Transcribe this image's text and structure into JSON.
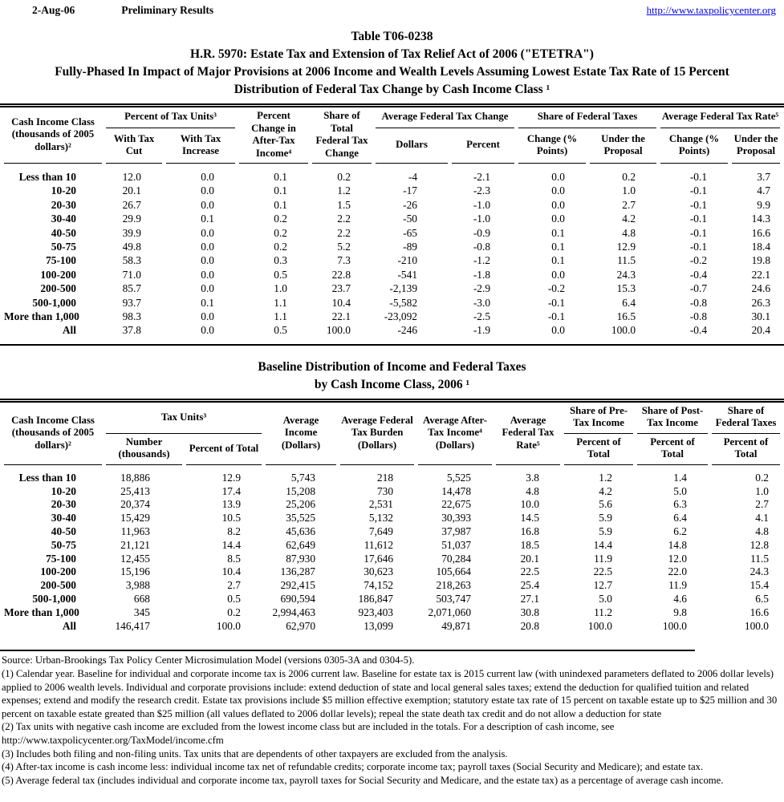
{
  "page_header": {
    "date": "2-Aug-06",
    "status": "Preliminary Results",
    "link": "http://www.taxpolicycenter.org"
  },
  "title_block": {
    "line1": "Table T06-0238",
    "line2": "H.R. 5970: Estate Tax and Extension of Tax Relief Act of 2006 (\"ETETRA\")",
    "line3": "Fully-Phased In Impact of Major Provisions at 2006 Income and Wealth Levels Assuming Lowest Estate Tax Rate of 15 Percent",
    "line4": "Distribution of Federal Tax Change by Cash Income Class ¹"
  },
  "table1": {
    "header": {
      "cash_income_class": "Cash Income Class (thousands of 2005 dollars)²",
      "pct_tax_units": "Percent of Tax Units³",
      "with_tax_cut": "With Tax Cut",
      "with_tax_increase": "With Tax Increase",
      "pct_change_ati": "Percent Change in After-Tax Income⁴",
      "share_total_change": "Share of Total Federal Tax Change",
      "avg_fed_tax_change": "Average Federal Tax Change",
      "dollars": "Dollars",
      "percent": "Percent",
      "share_fed_taxes": "Share of Federal Taxes",
      "change_pts_1": "Change (% Points)",
      "under_proposal_1": "Under the Proposal",
      "avg_fed_tax_rate": "Average Federal Tax Rate⁵",
      "change_pts_2": "Change (% Points)",
      "under_proposal_2": "Under the Proposal"
    },
    "rows": [
      [
        "Less than 10",
        "12.0",
        "0.0",
        "0.1",
        "0.2",
        "-4",
        "-2.1",
        "0.0",
        "0.2",
        "-0.1",
        "3.7"
      ],
      [
        "10-20",
        "20.1",
        "0.0",
        "0.1",
        "1.2",
        "-17",
        "-2.3",
        "0.0",
        "1.0",
        "-0.1",
        "4.7"
      ],
      [
        "20-30",
        "26.7",
        "0.0",
        "0.1",
        "1.5",
        "-26",
        "-1.0",
        "0.0",
        "2.7",
        "-0.1",
        "9.9"
      ],
      [
        "30-40",
        "29.9",
        "0.1",
        "0.2",
        "2.2",
        "-50",
        "-1.0",
        "0.0",
        "4.2",
        "-0.1",
        "14.3"
      ],
      [
        "40-50",
        "39.9",
        "0.0",
        "0.2",
        "2.2",
        "-65",
        "-0.9",
        "0.1",
        "4.8",
        "-0.1",
        "16.6"
      ],
      [
        "50-75",
        "49.8",
        "0.0",
        "0.2",
        "5.2",
        "-89",
        "-0.8",
        "0.1",
        "12.9",
        "-0.1",
        "18.4"
      ],
      [
        "75-100",
        "58.3",
        "0.0",
        "0.3",
        "7.3",
        "-210",
        "-1.2",
        "0.1",
        "11.5",
        "-0.2",
        "19.8"
      ],
      [
        "100-200",
        "71.0",
        "0.0",
        "0.5",
        "22.8",
        "-541",
        "-1.8",
        "0.0",
        "24.3",
        "-0.4",
        "22.1"
      ],
      [
        "200-500",
        "85.7",
        "0.0",
        "1.0",
        "23.7",
        "-2,139",
        "-2.9",
        "-0.2",
        "15.3",
        "-0.7",
        "24.6"
      ],
      [
        "500-1,000",
        "93.7",
        "0.1",
        "1.1",
        "10.4",
        "-5,582",
        "-3.0",
        "-0.1",
        "6.4",
        "-0.8",
        "26.3"
      ],
      [
        "More than 1,000",
        "98.3",
        "0.0",
        "1.1",
        "22.1",
        "-23,092",
        "-2.5",
        "-0.1",
        "16.5",
        "-0.8",
        "30.1"
      ],
      [
        "All",
        "37.8",
        "0.0",
        "0.5",
        "100.0",
        "-246",
        "-1.9",
        "0.0",
        "100.0",
        "-0.4",
        "20.4"
      ]
    ]
  },
  "table2_title": {
    "line1": "Baseline Distribution of Income and Federal Taxes",
    "line2": "by Cash Income Class, 2006 ¹"
  },
  "table2": {
    "header": {
      "cash_income_class": "Cash Income Class (thousands of 2005 dollars)²",
      "tax_units": "Tax Units³",
      "number_thousands": "Number (thousands)",
      "percent_of_total": "Percent of Total",
      "avg_income": "Average Income (Dollars)",
      "avg_fed_tax_burden": "Average Federal Tax Burden (Dollars)",
      "avg_after_tax_income": "Average After-Tax Income⁴ (Dollars)",
      "avg_fed_tax_rate": "Average Federal Tax Rate⁵",
      "share_pre_tax": "Share of Pre-Tax Income",
      "share_post_tax": "Share of Post-Tax Income",
      "share_fed_taxes": "Share of Federal Taxes",
      "pct_total_pre": "Percent of Total",
      "pct_total_post": "Percent of Total",
      "pct_total_fed": "Percent of Total"
    },
    "rows": [
      [
        "Less than 10",
        "18,886",
        "12.9",
        "5,743",
        "218",
        "5,525",
        "3.8",
        "1.2",
        "1.4",
        "0.2"
      ],
      [
        "10-20",
        "25,413",
        "17.4",
        "15,208",
        "730",
        "14,478",
        "4.8",
        "4.2",
        "5.0",
        "1.0"
      ],
      [
        "20-30",
        "20,374",
        "13.9",
        "25,206",
        "2,531",
        "22,675",
        "10.0",
        "5.6",
        "6.3",
        "2.7"
      ],
      [
        "30-40",
        "15,429",
        "10.5",
        "35,525",
        "5,132",
        "30,393",
        "14.5",
        "5.9",
        "6.4",
        "4.1"
      ],
      [
        "40-50",
        "11,963",
        "8.2",
        "45,636",
        "7,649",
        "37,987",
        "16.8",
        "5.9",
        "6.2",
        "4.8"
      ],
      [
        "50-75",
        "21,121",
        "14.4",
        "62,649",
        "11,612",
        "51,037",
        "18.5",
        "14.4",
        "14.8",
        "12.8"
      ],
      [
        "75-100",
        "12,455",
        "8.5",
        "87,930",
        "17,646",
        "70,284",
        "20.1",
        "11.9",
        "12.0",
        "11.5"
      ],
      [
        "100-200",
        "15,196",
        "10.4",
        "136,287",
        "30,623",
        "105,664",
        "22.5",
        "22.5",
        "22.0",
        "24.3"
      ],
      [
        "200-500",
        "3,988",
        "2.7",
        "292,415",
        "74,152",
        "218,263",
        "25.4",
        "12.7",
        "11.9",
        "15.4"
      ],
      [
        "500-1,000",
        "668",
        "0.5",
        "690,594",
        "186,847",
        "503,747",
        "27.1",
        "5.0",
        "4.6",
        "6.5"
      ],
      [
        "More than 1,000",
        "345",
        "0.2",
        "2,994,463",
        "923,403",
        "2,071,060",
        "30.8",
        "11.2",
        "9.8",
        "16.6"
      ],
      [
        "All",
        "146,417",
        "100.0",
        "62,970",
        "13,099",
        "49,871",
        "20.8",
        "100.0",
        "100.0",
        "100.0"
      ]
    ]
  },
  "footnotes": [
    "Source: Urban-Brookings Tax Policy Center Microsimulation Model (versions 0305-3A and 0304-5).",
    "(1) Calendar year. Baseline for individual and corporate income tax is 2006 current law.  Baseline for estate tax is 2015 current law (with unindexed parameters deflated to 2006 dollar levels) applied to 2006 wealth levels.  Individual and corporate provisions include: extend deduction of state and local general sales taxes; extend the deduction for qualified tuition and related expenses; extend and modify the research credit.  Estate tax provisions include $5 million effective exemption; statutory estate tax rate of 15 percent on taxable estate up to $25 million and 30 percent on taxable estate greated than $25 million (all values deflated to 2006 dollar levels); repeal the state death tax credit and do not allow a deduction for state",
    "(2) Tax units with negative cash income are excluded from the lowest income class but are included in the totals. For a description of cash income, see http://www.taxpolicycenter.org/TaxModel/income.cfm",
    "(3) Includes both filing and non-filing units.  Tax units that are dependents of other taxpayers are excluded from the analysis.",
    "(4) After-tax income is cash income less: individual income tax net of refundable credits; corporate income tax; payroll taxes (Social Security and Medicare); and estate tax.",
    "(5) Average federal tax (includes individual and corporate income tax, payroll taxes for Social Security and Medicare, and the estate tax) as a percentage of average cash income."
  ]
}
